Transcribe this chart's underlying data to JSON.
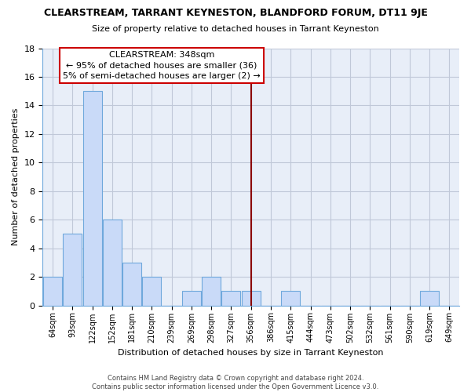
{
  "title": "CLEARSTREAM, TARRANT KEYNESTON, BLANDFORD FORUM, DT11 9JE",
  "subtitle": "Size of property relative to detached houses in Tarrant Keyneston",
  "xlabel": "Distribution of detached houses by size in Tarrant Keyneston",
  "ylabel": "Number of detached properties",
  "bar_labels": [
    "64sqm",
    "93sqm",
    "122sqm",
    "152sqm",
    "181sqm",
    "210sqm",
    "239sqm",
    "269sqm",
    "298sqm",
    "327sqm",
    "356sqm",
    "386sqm",
    "415sqm",
    "444sqm",
    "473sqm",
    "502sqm",
    "532sqm",
    "561sqm",
    "590sqm",
    "619sqm",
    "649sqm"
  ],
  "bar_values": [
    2,
    5,
    15,
    6,
    3,
    2,
    0,
    1,
    2,
    1,
    1,
    0,
    1,
    0,
    0,
    0,
    0,
    0,
    0,
    1,
    0
  ],
  "bar_color": "#c9daf8",
  "bar_edge_color": "#6fa8dc",
  "vline_index": 10,
  "vline_color": "#8b0000",
  "annotation_title": "CLEARSTREAM: 348sqm",
  "annotation_line1": "← 95% of detached houses are smaller (36)",
  "annotation_line2": "5% of semi-detached houses are larger (2) →",
  "annotation_box_color": "#ffffff",
  "annotation_box_edge": "#cc0000",
  "ylim": [
    0,
    18
  ],
  "yticks": [
    0,
    2,
    4,
    6,
    8,
    10,
    12,
    14,
    16,
    18
  ],
  "footer_line1": "Contains HM Land Registry data © Crown copyright and database right 2024.",
  "footer_line2": "Contains public sector information licensed under the Open Government Licence v3.0.",
  "bg_color": "#ffffff",
  "plot_bg_color": "#e8eef8",
  "grid_color": "#c0c8d8"
}
